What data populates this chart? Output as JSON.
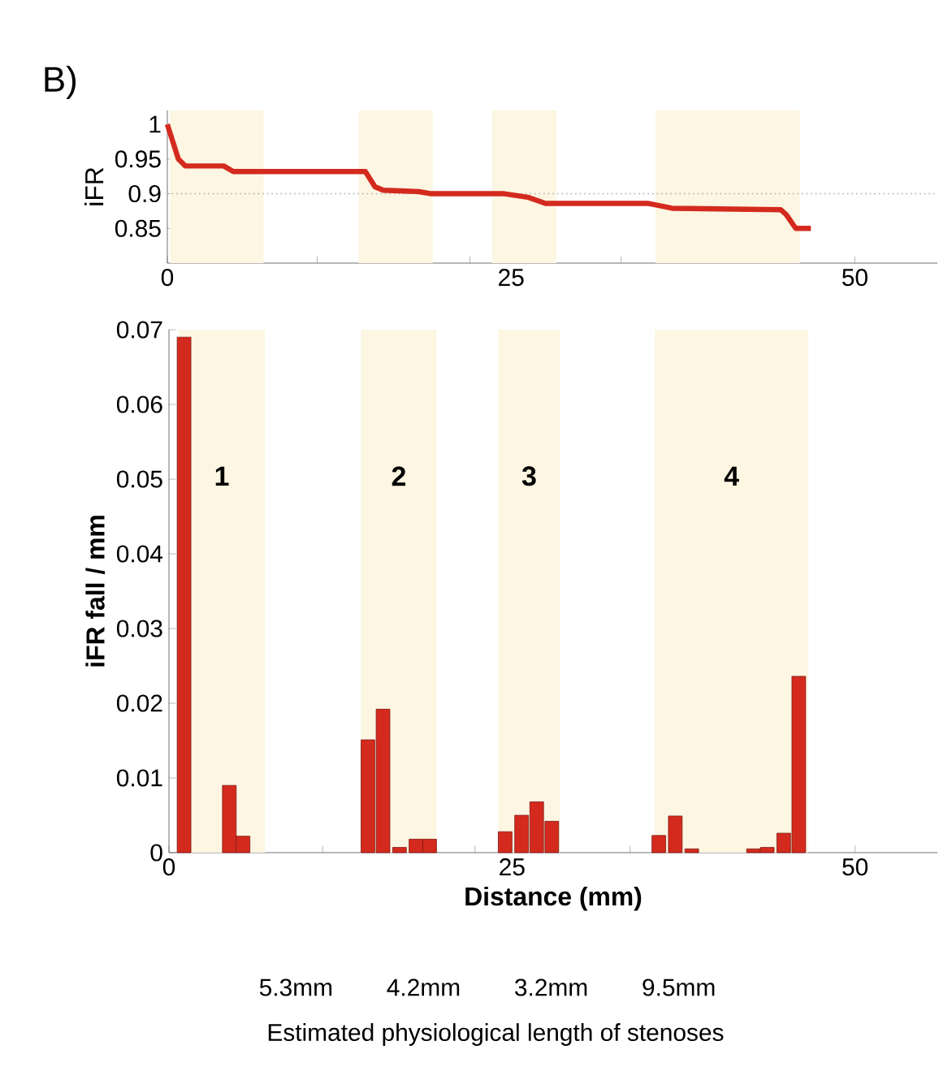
{
  "chart_data": [
    {
      "type": "line",
      "title": "B)",
      "ylabel": "iFR",
      "xlim": [
        0,
        56
      ],
      "ylim": [
        0.8,
        1.02
      ],
      "xticks": [
        0,
        {
          "value": 5.2,
          "label": null
        },
        {
          "value": 10.9,
          "label": null
        },
        {
          "value": 16.4,
          "label": null
        },
        {
          "value": 22.0,
          "label": null
        },
        25,
        {
          "value": 33.0,
          "label": null
        },
        {
          "value": 38.5,
          "label": null
        },
        {
          "value": 44.1,
          "label": null
        },
        50
      ],
      "yticks": [
        0.85,
        0.9,
        0.95,
        1
      ],
      "color": "#d42a1e",
      "x": [
        0,
        0.4,
        0.8,
        1.3,
        4.1,
        4.8,
        14.4,
        15.1,
        15.7,
        18.3,
        19.2,
        24.5,
        26.2,
        27.5,
        35.0,
        36.7,
        44.6,
        45.0,
        45.7,
        46.8
      ],
      "values": [
        1.0,
        0.975,
        0.95,
        0.94,
        0.94,
        0.932,
        0.932,
        0.91,
        0.905,
        0.903,
        0.9,
        0.9,
        0.895,
        0.886,
        0.886,
        0.879,
        0.877,
        0.87,
        0.85,
        0.85
      ],
      "ref_lines": [
        {
          "axis": "y",
          "value": 0.9,
          "color": "#aaaaaa",
          "line_style": "dotted"
        }
      ],
      "bands": [
        {
          "axis": "x",
          "from": 0.2,
          "to": 7.0,
          "color": "#fcf6e2"
        },
        {
          "axis": "x",
          "from": 13.9,
          "to": 19.3,
          "color": "#fcf6e2"
        },
        {
          "axis": "x",
          "from": 23.6,
          "to": 28.3,
          "color": "#fcf6e2"
        },
        {
          "axis": "x",
          "from": 35.5,
          "to": 46.0,
          "color": "#fcf6e2"
        }
      ]
    },
    {
      "type": "bar",
      "xlabel": "Distance (mm)",
      "ylabel": "iFR fall / mm",
      "xlim": [
        0,
        56
      ],
      "ylim": [
        0,
        0.07
      ],
      "xticks": [
        0,
        {
          "value": 11.2,
          "label": null
        },
        {
          "value": 22.3,
          "label": null
        },
        25,
        {
          "value": 33.6,
          "label": null
        },
        {
          "value": 39.2,
          "label": null
        },
        50
      ],
      "yticks": [
        0,
        0.01,
        0.02,
        0.03,
        0.04,
        0.05,
        0.06,
        0.07
      ],
      "color": "#d42a1e",
      "x": [
        1.1,
        4.4,
        5.4,
        14.5,
        15.6,
        16.8,
        18.0,
        19.0,
        24.5,
        25.7,
        26.8,
        27.9,
        35.7,
        36.9,
        38.1,
        42.6,
        43.6,
        44.8,
        45.9
      ],
      "values": [
        0.069,
        0.009,
        0.0022,
        0.0151,
        0.0192,
        0.0007,
        0.0018,
        0.0018,
        0.0028,
        0.005,
        0.0068,
        0.0042,
        0.0023,
        0.0049,
        0.0005,
        0.0005,
        0.0007,
        0.0026,
        0.0236
      ],
      "bands": [
        {
          "axis": "x",
          "from": 0.7,
          "to": 7.0,
          "label": "1",
          "color": "#fcf6e2"
        },
        {
          "axis": "x",
          "from": 14.0,
          "to": 19.5,
          "label": "2",
          "color": "#fcf6e2"
        },
        {
          "axis": "x",
          "from": 24.0,
          "to": 28.5,
          "label": "3",
          "color": "#fcf6e2"
        },
        {
          "axis": "x",
          "from": 35.4,
          "to": 46.6,
          "label": "4",
          "color": "#fcf6e2"
        }
      ],
      "annotations": [
        "5.3mm",
        "4.2mm",
        "3.2mm",
        "9.5mm",
        "Estimated physiological length of stenoses"
      ]
    }
  ]
}
